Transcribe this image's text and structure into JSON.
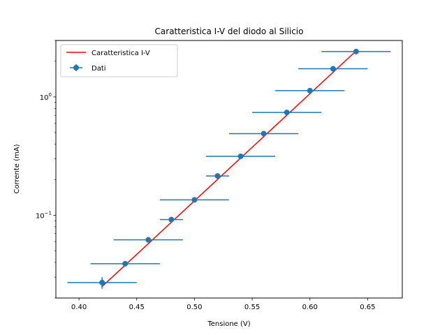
{
  "chart_data": {
    "type": "scatter",
    "title": "Caratteristica I-V del diodo al Silicio",
    "xlabel": "Tensione (V)",
    "ylabel": "Corrente (mA)",
    "xlim": [
      0.38,
      0.68
    ],
    "ylim": [
      0.02,
      3.0
    ],
    "yscale": "log",
    "x_ticks": [
      0.4,
      0.45,
      0.5,
      0.55,
      0.6,
      0.65
    ],
    "x_tick_labels": [
      "0.40",
      "0.45",
      "0.50",
      "0.55",
      "0.60",
      "0.65"
    ],
    "y_major_ticks": [
      0.1,
      1.0
    ],
    "y_tick_labels": [
      "10$^{-1}$",
      "10$^{0}$"
    ],
    "legend_position": "top-left",
    "colors": {
      "data": "#1f77b4",
      "fit": "#ff0000"
    },
    "series": [
      {
        "name": "Dati",
        "kind": "errorbar",
        "x": [
          0.42,
          0.44,
          0.46,
          0.48,
          0.5,
          0.52,
          0.54,
          0.56,
          0.58,
          0.6,
          0.62,
          0.64
        ],
        "y": [
          0.027,
          0.039,
          0.062,
          0.092,
          0.135,
          0.215,
          0.315,
          0.49,
          0.74,
          1.13,
          1.73,
          2.42
        ],
        "xerr": [
          0.03,
          0.03,
          0.03,
          0.01,
          0.03,
          0.01,
          0.03,
          0.03,
          0.03,
          0.03,
          0.03,
          0.03
        ],
        "yerr": [
          0.003,
          0.0015,
          0.002,
          0.003,
          0.004,
          0.005,
          0.006,
          0.008,
          0.01,
          0.012,
          0.02,
          0.03
        ]
      },
      {
        "name": "Caratteristica I-V",
        "kind": "line",
        "x": [
          0.42,
          0.64
        ],
        "y": [
          0.025,
          2.45
        ]
      }
    ]
  }
}
